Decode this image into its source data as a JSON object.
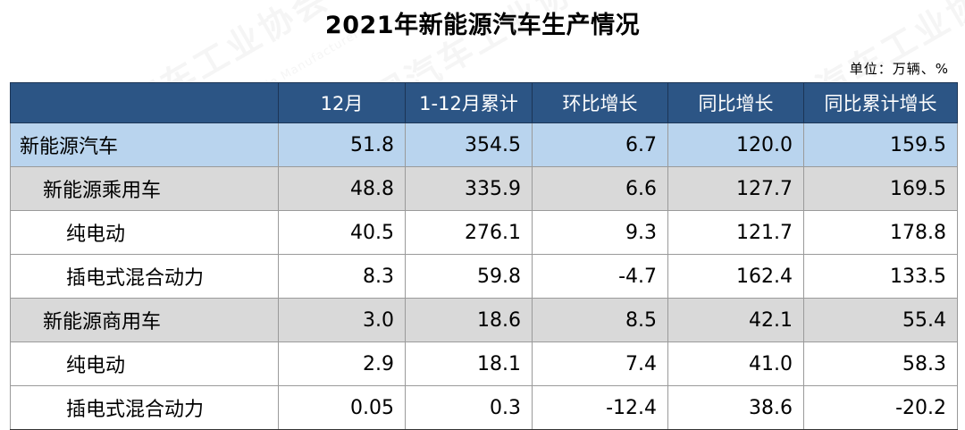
{
  "title": "2021年新能源汽车生产情况",
  "unit": "单位：万辆、%",
  "watermark": {
    "text_cn": "中国汽车工业协会",
    "text_en": "China Association of Automobile Manufacturers"
  },
  "colors": {
    "header_bg": "#2c5585",
    "level0_bg": "#b9d4ee",
    "level1_bg": "#d9d9d9",
    "level2_bg": "#ffffff"
  },
  "table": {
    "headers": [
      "",
      "12月",
      "1-12月累计",
      "环比增长",
      "同比增长",
      "同比累计增长"
    ],
    "rows": [
      {
        "label": "新能源汽车",
        "level": 0,
        "values": [
          "51.8",
          "354.5",
          "6.7",
          "120.0",
          "159.5"
        ]
      },
      {
        "label": "新能源乘用车",
        "level": 1,
        "values": [
          "48.8",
          "335.9",
          "6.6",
          "127.7",
          "169.5"
        ]
      },
      {
        "label": "纯电动",
        "level": 2,
        "values": [
          "40.5",
          "276.1",
          "9.3",
          "121.7",
          "178.8"
        ]
      },
      {
        "label": "插电式混合动力",
        "level": 2,
        "values": [
          "8.3",
          "59.8",
          "-4.7",
          "162.4",
          "133.5"
        ]
      },
      {
        "label": "新能源商用车",
        "level": 1,
        "values": [
          "3.0",
          "18.6",
          "8.5",
          "42.1",
          "55.4"
        ]
      },
      {
        "label": "纯电动",
        "level": 2,
        "values": [
          "2.9",
          "18.1",
          "7.4",
          "41.0",
          "58.3"
        ]
      },
      {
        "label": "插电式混合动力",
        "level": 2,
        "values": [
          "0.05",
          "0.3",
          "-12.4",
          "38.6",
          "-20.2"
        ]
      }
    ]
  },
  "chart_data": {
    "type": "table",
    "title": "2021年新能源汽车生产情况",
    "unit": "单位：万辆、%",
    "columns": [
      "12月",
      "1-12月累计",
      "环比增长",
      "同比增长",
      "同比累计增长"
    ],
    "rows": [
      {
        "name": "新能源汽车",
        "values": [
          51.8,
          354.5,
          6.7,
          120.0,
          159.5
        ]
      },
      {
        "name": "新能源乘用车",
        "values": [
          48.8,
          335.9,
          6.6,
          127.7,
          169.5
        ]
      },
      {
        "name": "纯电动",
        "values": [
          40.5,
          276.1,
          9.3,
          121.7,
          178.8
        ]
      },
      {
        "name": "插电式混合动力",
        "values": [
          8.3,
          59.8,
          -4.7,
          162.4,
          133.5
        ]
      },
      {
        "name": "新能源商用车",
        "values": [
          3.0,
          18.6,
          8.5,
          42.1,
          55.4
        ]
      },
      {
        "name": "纯电动",
        "values": [
          2.9,
          18.1,
          7.4,
          41.0,
          58.3
        ]
      },
      {
        "name": "插电式混合动力",
        "values": [
          0.05,
          0.3,
          -12.4,
          38.6,
          -20.2
        ]
      }
    ]
  }
}
